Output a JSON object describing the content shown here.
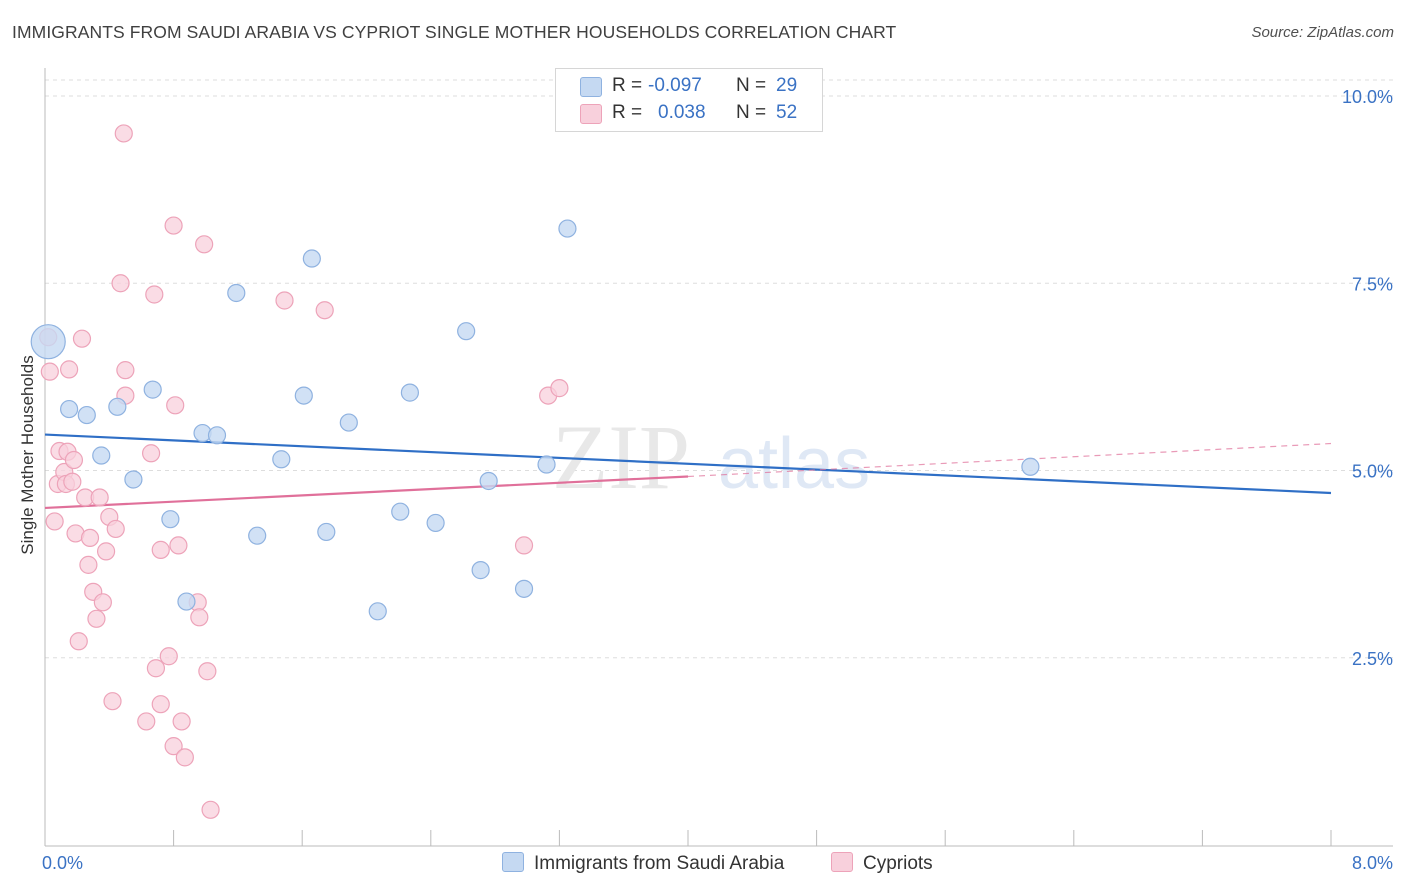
{
  "title": "IMMIGRANTS FROM SAUDI ARABIA VS CYPRIOT SINGLE MOTHER HOUSEHOLDS CORRELATION CHART",
  "source": "Source: ZipAtlas.com",
  "watermark": {
    "zip": "ZIP",
    "atlas": "atlas"
  },
  "colors": {
    "blue_fill": "#c5d9f2",
    "blue_stroke": "#8fb2e0",
    "blue_line": "#2f6fc6",
    "pink_fill": "#f8d0dc",
    "pink_stroke": "#eda3b9",
    "pink_line": "#e0709a",
    "tick_text": "#3a72c4",
    "grid": "#dddddd"
  },
  "legend": {
    "r_label": "R =",
    "n_label": "N =",
    "series1": {
      "r": "-0.097",
      "n": "29"
    },
    "series2": {
      "r": "0.038",
      "n": "52"
    }
  },
  "bottom_legend": {
    "series1": "Immigrants from Saudi Arabia",
    "series2": "Cypriots"
  },
  "chart_data": {
    "type": "scatter",
    "xlabel": "",
    "ylabel": "Single Mother Households",
    "xlim": [
      0,
      8
    ],
    "ylim": [
      0,
      10
    ],
    "x_tick_labels": [
      "0.0%",
      "8.0%"
    ],
    "y_ticks": [
      2.5,
      5.0,
      7.5,
      10.0
    ],
    "y_tick_labels": [
      "2.5%",
      "5.0%",
      "7.5%",
      "10.0%"
    ],
    "series": [
      {
        "name": "Immigrants from Saudi Arabia",
        "r": -0.097,
        "n": 29,
        "trend": {
          "x0": 0.0,
          "y0": 5.48,
          "x1": 8.0,
          "y1": 4.7
        },
        "points": [
          {
            "x": 0.02,
            "y": 6.72,
            "big": true
          },
          {
            "x": 0.15,
            "y": 5.82
          },
          {
            "x": 0.26,
            "y": 5.74
          },
          {
            "x": 0.35,
            "y": 5.2
          },
          {
            "x": 0.45,
            "y": 5.85
          },
          {
            "x": 0.55,
            "y": 4.88
          },
          {
            "x": 0.67,
            "y": 6.08
          },
          {
            "x": 0.78,
            "y": 4.35
          },
          {
            "x": 0.88,
            "y": 3.25
          },
          {
            "x": 0.98,
            "y": 5.5
          },
          {
            "x": 1.07,
            "y": 5.47
          },
          {
            "x": 1.19,
            "y": 7.37
          },
          {
            "x": 1.32,
            "y": 4.13
          },
          {
            "x": 1.47,
            "y": 5.15
          },
          {
            "x": 1.61,
            "y": 6.0
          },
          {
            "x": 1.66,
            "y": 7.83
          },
          {
            "x": 1.75,
            "y": 4.18
          },
          {
            "x": 1.89,
            "y": 5.64
          },
          {
            "x": 2.07,
            "y": 3.12
          },
          {
            "x": 2.21,
            "y": 4.45
          },
          {
            "x": 2.27,
            "y": 6.04
          },
          {
            "x": 2.43,
            "y": 4.3
          },
          {
            "x": 2.62,
            "y": 6.86
          },
          {
            "x": 2.71,
            "y": 3.67
          },
          {
            "x": 2.76,
            "y": 4.86
          },
          {
            "x": 2.98,
            "y": 3.42
          },
          {
            "x": 3.12,
            "y": 5.08
          },
          {
            "x": 3.25,
            "y": 8.23
          },
          {
            "x": 6.13,
            "y": 5.05
          }
        ]
      },
      {
        "name": "Cypriots",
        "r": 0.038,
        "n": 52,
        "trend": {
          "x0": 0.0,
          "y0": 4.5,
          "x1": 4.0,
          "y1": 4.92
        },
        "trend_dashed": {
          "x0": 4.0,
          "y0": 4.92,
          "x1": 8.0,
          "y1": 5.36
        },
        "points": [
          {
            "x": 0.02,
            "y": 6.78
          },
          {
            "x": 0.03,
            "y": 6.32
          },
          {
            "x": 0.06,
            "y": 4.32
          },
          {
            "x": 0.08,
            "y": 4.82
          },
          {
            "x": 0.09,
            "y": 5.26
          },
          {
            "x": 0.12,
            "y": 4.98
          },
          {
            "x": 0.13,
            "y": 4.82
          },
          {
            "x": 0.14,
            "y": 5.25
          },
          {
            "x": 0.15,
            "y": 6.35
          },
          {
            "x": 0.17,
            "y": 4.85
          },
          {
            "x": 0.18,
            "y": 5.14
          },
          {
            "x": 0.19,
            "y": 4.16
          },
          {
            "x": 0.21,
            "y": 2.72
          },
          {
            "x": 0.23,
            "y": 6.76
          },
          {
            "x": 0.25,
            "y": 4.64
          },
          {
            "x": 0.27,
            "y": 3.74
          },
          {
            "x": 0.28,
            "y": 4.1
          },
          {
            "x": 0.3,
            "y": 3.38
          },
          {
            "x": 0.32,
            "y": 3.02
          },
          {
            "x": 0.34,
            "y": 4.64
          },
          {
            "x": 0.36,
            "y": 3.24
          },
          {
            "x": 0.38,
            "y": 3.92
          },
          {
            "x": 0.4,
            "y": 4.38
          },
          {
            "x": 0.42,
            "y": 1.92
          },
          {
            "x": 0.44,
            "y": 4.22
          },
          {
            "x": 0.47,
            "y": 7.5
          },
          {
            "x": 0.5,
            "y": 6.34
          },
          {
            "x": 0.5,
            "y": 6.0
          },
          {
            "x": 0.63,
            "y": 1.65
          },
          {
            "x": 0.66,
            "y": 5.23
          },
          {
            "x": 0.68,
            "y": 7.35
          },
          {
            "x": 0.69,
            "y": 2.36
          },
          {
            "x": 0.72,
            "y": 3.94
          },
          {
            "x": 0.72,
            "y": 1.88
          },
          {
            "x": 0.77,
            "y": 2.52
          },
          {
            "x": 0.8,
            "y": 1.32
          },
          {
            "x": 0.8,
            "y": 8.27
          },
          {
            "x": 0.81,
            "y": 5.87
          },
          {
            "x": 0.83,
            "y": 4.0
          },
          {
            "x": 0.85,
            "y": 1.65
          },
          {
            "x": 0.87,
            "y": 1.17
          },
          {
            "x": 0.95,
            "y": 3.24
          },
          {
            "x": 0.96,
            "y": 3.04
          },
          {
            "x": 0.99,
            "y": 8.02
          },
          {
            "x": 1.01,
            "y": 2.32
          },
          {
            "x": 1.03,
            "y": 0.47
          },
          {
            "x": 1.49,
            "y": 7.27
          },
          {
            "x": 1.74,
            "y": 7.14
          },
          {
            "x": 2.98,
            "y": 4.0
          },
          {
            "x": 3.13,
            "y": 6.0
          },
          {
            "x": 3.2,
            "y": 6.1
          },
          {
            "x": 0.49,
            "y": 9.5
          }
        ]
      }
    ]
  }
}
